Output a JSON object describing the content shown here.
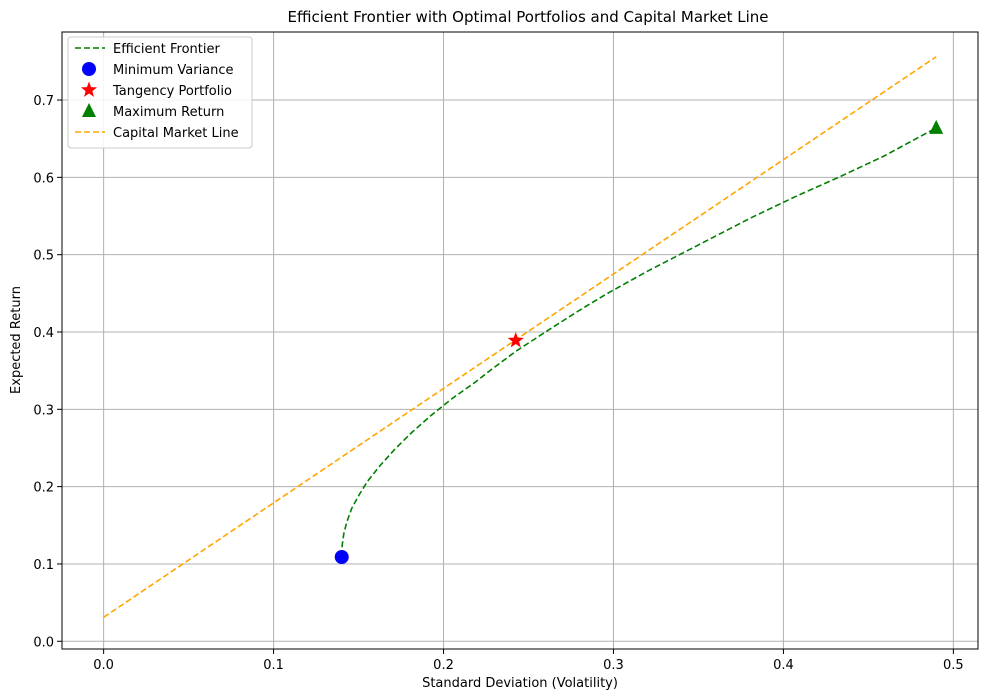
{
  "chart_data": {
    "type": "line",
    "title": "Efficient Frontier with Optimal Portfolios and Capital Market Line",
    "xlabel": "Standard Deviation (Volatility)",
    "ylabel": "Expected Return",
    "xlim": [
      -0.0245,
      0.5145
    ],
    "ylim": [
      -0.01,
      0.788
    ],
    "xticks": [
      0.0,
      0.1,
      0.2,
      0.3,
      0.4,
      0.5
    ],
    "yticks": [
      0.0,
      0.1,
      0.2,
      0.3,
      0.4,
      0.5,
      0.6,
      0.7
    ],
    "xtick_labels": [
      "0.0",
      "0.1",
      "0.2",
      "0.3",
      "0.4",
      "0.5"
    ],
    "ytick_labels": [
      "0.0",
      "0.1",
      "0.2",
      "0.3",
      "0.4",
      "0.5",
      "0.6",
      "0.7"
    ],
    "grid": true,
    "legend_position": "upper-left",
    "lines": [
      {
        "name": "Efficient Frontier",
        "color": "#008000",
        "style": "dashed",
        "x": [
          0.1401,
          0.1404,
          0.1414,
          0.1432,
          0.146,
          0.1505,
          0.1553,
          0.1626,
          0.1716,
          0.1813,
          0.1926,
          0.2045,
          0.2186,
          0.2273,
          0.2425,
          0.2621,
          0.2792,
          0.2957,
          0.3203,
          0.3486,
          0.3803,
          0.4069,
          0.4334,
          0.4587,
          0.4899
        ],
        "y": [
          0.11,
          0.125,
          0.14,
          0.155,
          0.172,
          0.19,
          0.207,
          0.227,
          0.249,
          0.27,
          0.292,
          0.313,
          0.335,
          0.35,
          0.375,
          0.403,
          0.427,
          0.449,
          0.479,
          0.511,
          0.547,
          0.575,
          0.601,
          0.627,
          0.664
        ]
      },
      {
        "name": "Capital Market Line",
        "color": "#FFA500",
        "style": "dashed",
        "x": [
          0.0,
          0.4899
        ],
        "y": [
          0.031,
          0.756
        ]
      }
    ],
    "points": [
      {
        "name": "Minimum Variance",
        "x": 0.1401,
        "y": 0.109,
        "marker": "circle",
        "color": "#0000FF"
      },
      {
        "name": "Tangency Portfolio",
        "x": 0.2425,
        "y": 0.389,
        "marker": "star",
        "color": "#FF0000"
      },
      {
        "name": "Maximum Return",
        "x": 0.4899,
        "y": 0.664,
        "marker": "triangle",
        "color": "#008000"
      }
    ],
    "legend": [
      {
        "label": "Efficient Frontier",
        "kind": "line",
        "color": "#008000"
      },
      {
        "label": "Minimum Variance",
        "kind": "circle",
        "color": "#0000FF"
      },
      {
        "label": "Tangency Portfolio",
        "kind": "star",
        "color": "#FF0000"
      },
      {
        "label": "Maximum Return",
        "kind": "triangle",
        "color": "#008000"
      },
      {
        "label": "Capital Market Line",
        "kind": "line",
        "color": "#FFA500"
      }
    ]
  }
}
